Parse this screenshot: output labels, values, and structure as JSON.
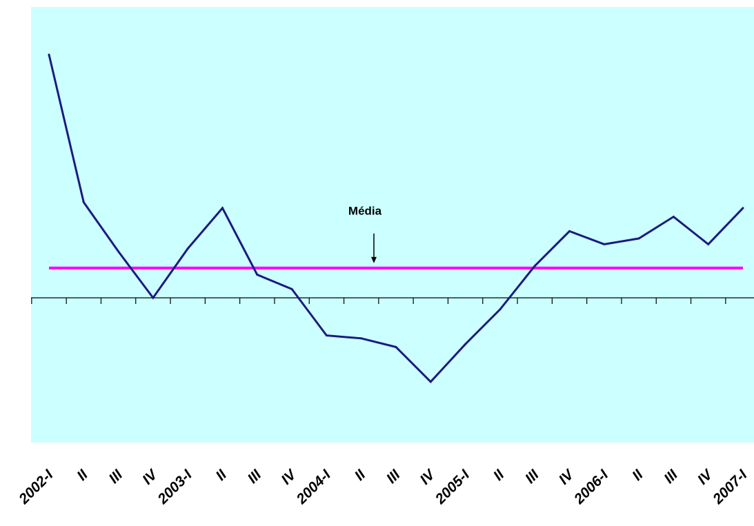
{
  "chart_data": {
    "type": "line",
    "title": "",
    "xlabel": "",
    "ylabel": "",
    "grid": false,
    "legend": "none",
    "categories": [
      "2002-I",
      "II",
      "III",
      "IV",
      "2003-I",
      "II",
      "III",
      "IV",
      "2004-I",
      "II",
      "III",
      "IV",
      "2005-I",
      "II",
      "III",
      "IV",
      "2006-I",
      "II",
      "III",
      "IV",
      "2007-I"
    ],
    "series": [
      {
        "color": "#1a1a80",
        "values": [
          84,
          33,
          16,
          0,
          17,
          31,
          8,
          3,
          -13,
          -14,
          -17,
          -29,
          -16,
          -4,
          11,
          23,
          18.5,
          20.5,
          28,
          18.5,
          31
        ]
      }
    ],
    "mean": {
      "label": "Média",
      "value": 10.3,
      "color": "#ff00ff"
    },
    "ylim": [
      -50,
      100
    ],
    "background": "#ccffff"
  }
}
